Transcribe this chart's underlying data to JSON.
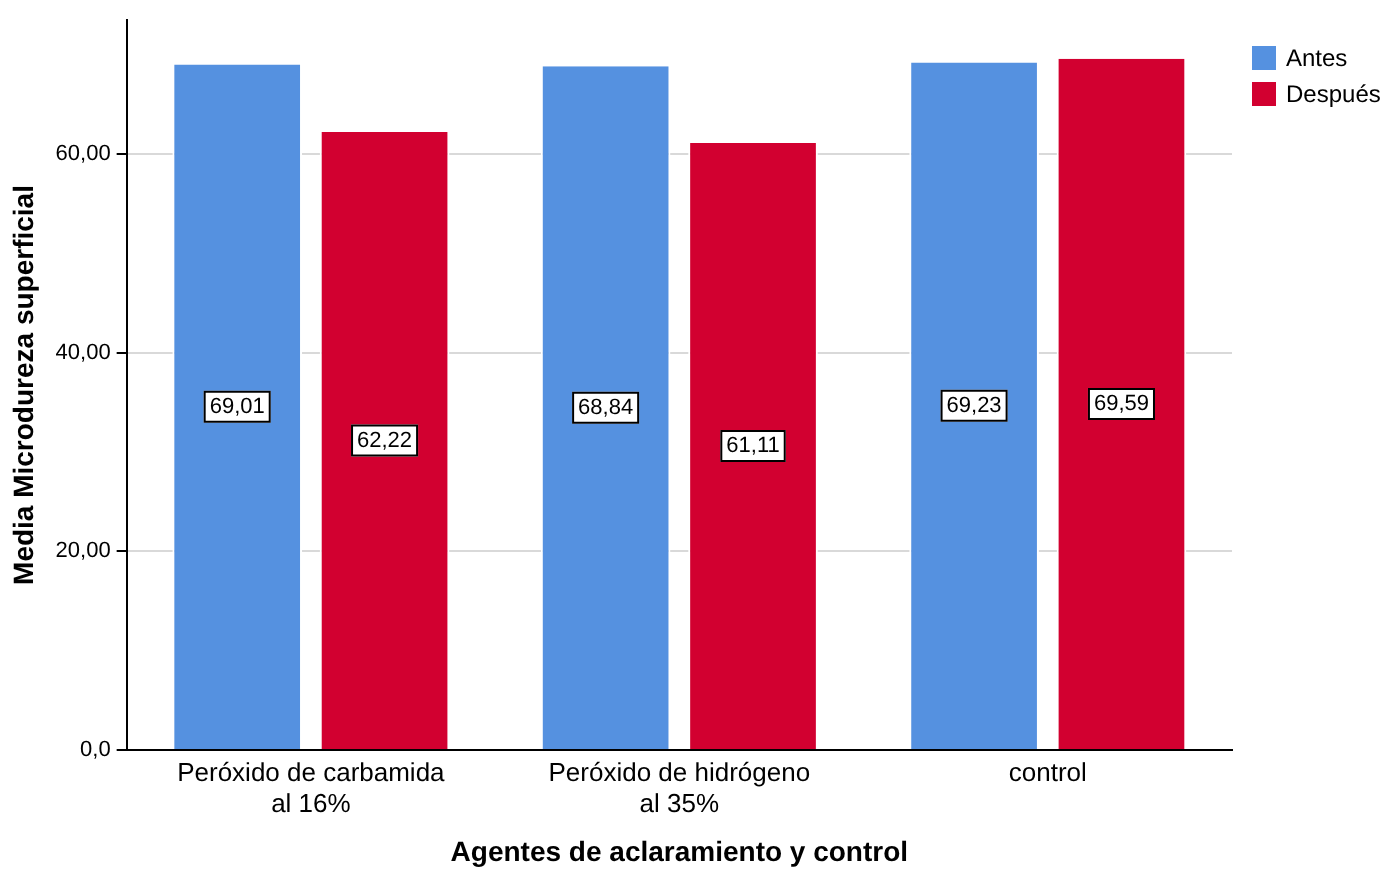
{
  "chart_data": {
    "type": "bar",
    "xlabel": "Agentes de aclaramiento y control",
    "ylabel": "Media Microdureza superficial",
    "categories": [
      "Peróxido de carbamida al 16%",
      "Peróxido de hidrógeno al 35%",
      "control"
    ],
    "series": [
      {
        "name": "Antes",
        "color": "#5591e0",
        "values": [
          69.01,
          68.84,
          69.23
        ],
        "value_labels": [
          "69,01",
          "68,84",
          "69,23"
        ]
      },
      {
        "name": "Después",
        "color": "#d20030",
        "values": [
          62.22,
          61.11,
          69.59
        ],
        "value_labels": [
          "62,22",
          "61,11",
          "69,59"
        ]
      }
    ],
    "ylim": [
      0,
      73.5
    ],
    "yticks": [
      {
        "value": 0,
        "label": "0,0"
      },
      {
        "value": 20,
        "label": "20,00"
      },
      {
        "value": 40,
        "label": "40,00"
      },
      {
        "value": 60,
        "label": "60,00"
      }
    ],
    "grid": "y",
    "legend": "top right"
  }
}
